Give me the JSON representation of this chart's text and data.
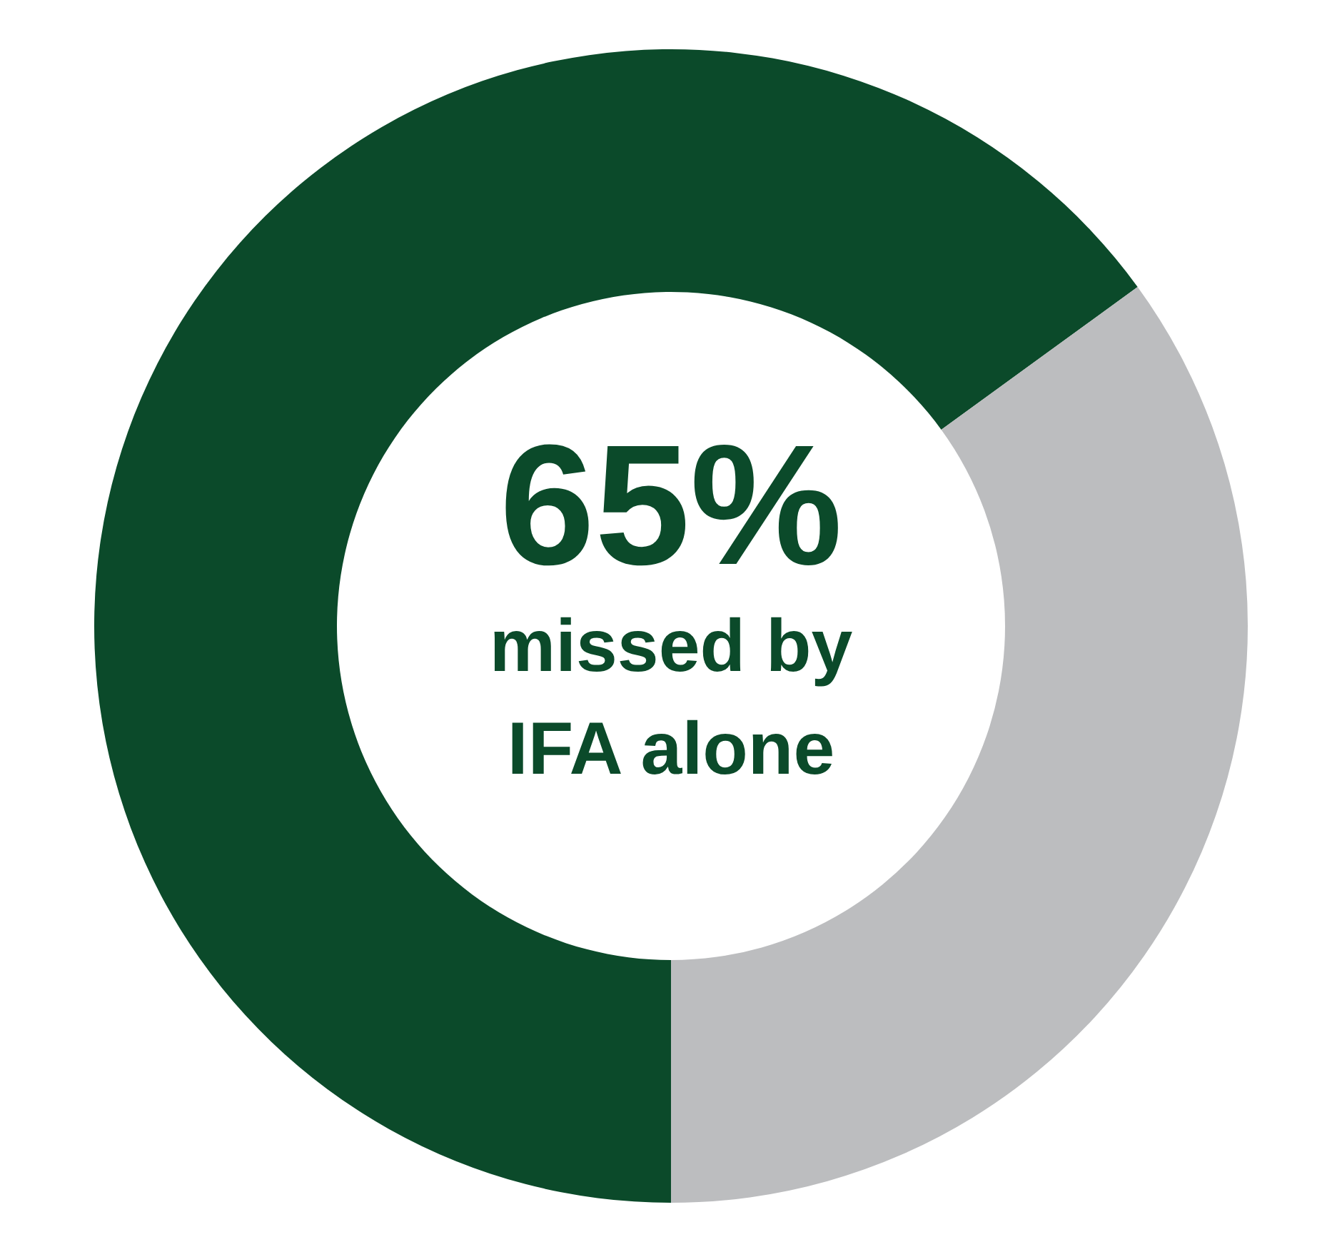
{
  "chart_data": {
    "type": "donut",
    "categories": [
      "missed by IFA alone",
      null
    ],
    "values": [
      65,
      35
    ],
    "colors": [
      "#0b4a2a",
      "#bcbdbf"
    ],
    "value_labels": [
      "65%",
      null
    ]
  }
}
